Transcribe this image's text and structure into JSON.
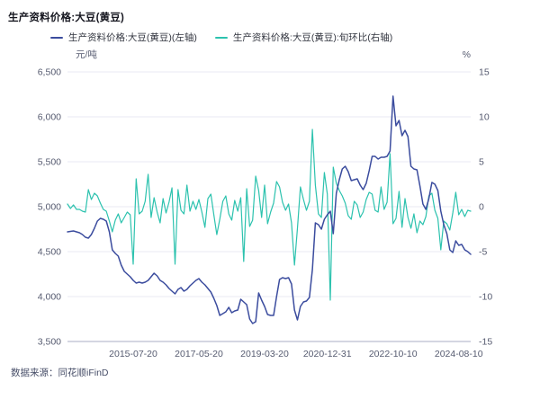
{
  "title": "生产资料价格:大豆(黄豆)",
  "legend": [
    {
      "label": "生产资料价格:大豆(黄豆)(左轴)",
      "color": "#3b4c9e"
    },
    {
      "label": "生产资料价格:大豆(黄豆):旬环比(右轴)",
      "color": "#2cc2ae"
    }
  ],
  "footer": "数据来源：同花顺iFinD",
  "colors": {
    "price_line": "#3b4c9e",
    "ratio_line": "#2cc2ae",
    "grid": "#e9eaf3",
    "axis_line": "#a9aec6",
    "axis_text": "#565b70"
  },
  "chart_data": {
    "type": "line",
    "title": "生产资料价格:大豆(黄豆)",
    "x_frequency": "monthly",
    "x_start": "2013-09",
    "x_end": "2024-12",
    "grid": true,
    "legend_position": "top",
    "left_axis": {
      "unit": "元/吨",
      "min": 3500,
      "max": 6500,
      "ticks": [
        "6,500",
        "6,000",
        "5,500",
        "5,000",
        "4,500",
        "4,000",
        "3,500"
      ]
    },
    "right_axis": {
      "unit": "%",
      "min": -15,
      "max": 15,
      "ticks": [
        "15",
        "10",
        "5",
        "0",
        "-5",
        "-10",
        "-15"
      ]
    },
    "x_tick_labels": [
      {
        "label": "2015-07-20",
        "index": 22
      },
      {
        "label": "2017-05-20",
        "index": 44
      },
      {
        "label": "2019-03-20",
        "index": 66
      },
      {
        "label": "2020-12-31",
        "index": 87
      },
      {
        "label": "2022-10-10",
        "index": 109
      },
      {
        "label": "2024-08-10",
        "index": 131
      }
    ],
    "series": [
      {
        "name": "生产资料价格:大豆(黄豆)(左轴)",
        "axis": "left",
        "color": "#3b4c9e",
        "values": [
          4720,
          4725,
          4730,
          4720,
          4710,
          4690,
          4660,
          4650,
          4690,
          4760,
          4840,
          4870,
          4860,
          4840,
          4720,
          4520,
          4480,
          4450,
          4350,
          4280,
          4250,
          4220,
          4180,
          4150,
          4160,
          4150,
          4160,
          4180,
          4220,
          4260,
          4230,
          4180,
          4160,
          4130,
          4090,
          4060,
          4030,
          4080,
          4100,
          4060,
          4080,
          4120,
          4150,
          4180,
          4200,
          4160,
          4130,
          4090,
          4050,
          3980,
          3900,
          3790,
          3810,
          3830,
          3880,
          3820,
          3840,
          3850,
          3970,
          3940,
          3910,
          3750,
          3700,
          3720,
          4040,
          3960,
          3890,
          3800,
          3790,
          3790,
          4000,
          4190,
          4210,
          4200,
          4210,
          4140,
          3850,
          3740,
          3890,
          3940,
          3950,
          3990,
          4300,
          4820,
          4800,
          4750,
          4860,
          4910,
          4950,
          4700,
          5150,
          5300,
          5420,
          5450,
          5390,
          5290,
          5300,
          5310,
          5240,
          5190,
          5260,
          5400,
          5560,
          5560,
          5530,
          5550,
          5550,
          5560,
          5620,
          6230,
          5900,
          5960,
          5790,
          5850,
          5780,
          5450,
          5420,
          5410,
          5230,
          5030,
          4970,
          5090,
          5270,
          5250,
          5180,
          4950,
          4800,
          4700,
          4520,
          4490,
          4620,
          4570,
          4580,
          4520,
          4500,
          4470
        ]
      },
      {
        "name": "生产资料价格:大豆(黄豆):旬环比(右轴)",
        "axis": "right",
        "color": "#2cc2ae",
        "values": [
          0.3,
          -0.2,
          0.2,
          -0.3,
          -0.3,
          -0.5,
          -0.6,
          1.9,
          0.8,
          1.5,
          1.2,
          0.4,
          -0.3,
          -0.5,
          -1.6,
          -2.8,
          -1.5,
          -0.8,
          -1.8,
          -1.2,
          -0.6,
          -0.9,
          -6.4,
          3.1,
          -0.8,
          -0.5,
          0.6,
          3.6,
          -1.2,
          1.0,
          -0.6,
          -1.8,
          0.9,
          -0.7,
          0.5,
          2.1,
          -6.4,
          1.9,
          -0.4,
          -0.8,
          2.4,
          -0.5,
          0.6,
          -0.3,
          0.8,
          -0.6,
          -2.3,
          0.9,
          1.4,
          -0.9,
          -3.1,
          -1.4,
          0.6,
          1.2,
          -0.8,
          -1.5,
          0.7,
          -0.5,
          1.0,
          -6.1,
          2.0,
          -2.2,
          -1.5,
          3.4,
          1.8,
          -1.2,
          2.4,
          -1.9,
          -0.6,
          0.4,
          2.8,
          2.2,
          0.5,
          -0.4,
          0.3,
          -1.8,
          -6.5,
          -2.4,
          2.2,
          0.8,
          -0.4,
          0.6,
          8.6,
          2.4,
          -0.8,
          -1.2,
          3.8,
          1.4,
          -10.4,
          4.4,
          2.6,
          1.8,
          1.2,
          0.4,
          -1.0,
          -1.4,
          0.6,
          0.2,
          -1.2,
          -0.6,
          0.8,
          1.6,
          1.4,
          -0.4,
          -0.6,
          2.2,
          -0.3,
          0.5,
          5.9,
          -1.9,
          -1.3,
          1.7,
          -2.3,
          0.9,
          -1.2,
          -2.4,
          -0.8,
          -2.9,
          -1.6,
          -2.0,
          -1.1,
          1.2,
          1.5,
          -0.4,
          -1.3,
          -4.8,
          -1.6,
          -1.9,
          -2.6,
          -0.7,
          1.6,
          -0.9,
          -0.3,
          -1.1,
          -0.4,
          -0.5
        ]
      }
    ]
  }
}
